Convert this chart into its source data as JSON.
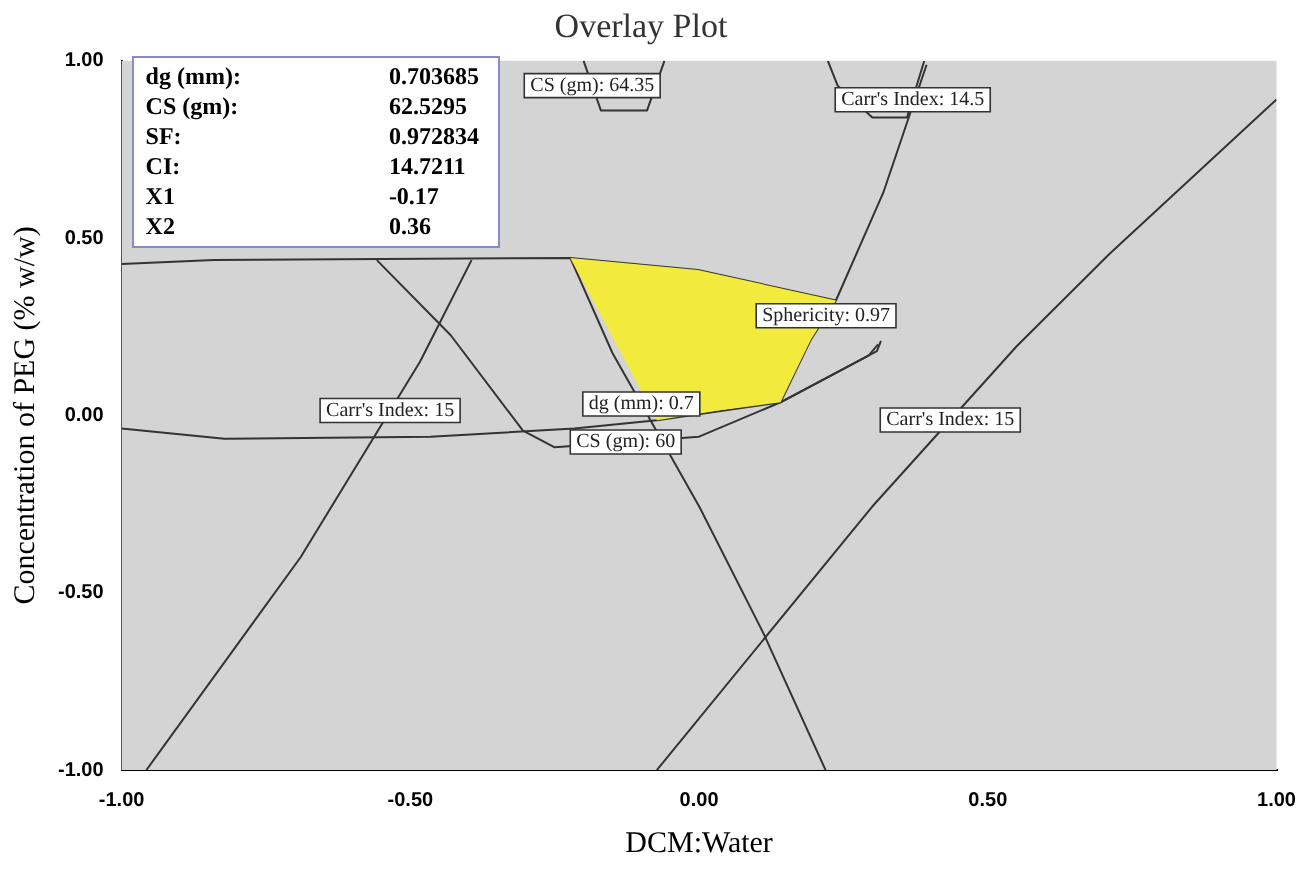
{
  "chart_data": {
    "type": "line",
    "title": "Overlay Plot",
    "xlabel": "DCM:Water",
    "ylabel": "Concentration of PEG (% w/w)",
    "xlim": [
      -1,
      1
    ],
    "ylim": [
      -1,
      1
    ],
    "xticks": [
      {
        "value": -1,
        "label": "-1.00"
      },
      {
        "value": -0.5,
        "label": "-0.50"
      },
      {
        "value": 0,
        "label": "0.00"
      },
      {
        "value": 0.5,
        "label": "0.50"
      },
      {
        "value": 1,
        "label": "1.00"
      }
    ],
    "yticks": [
      {
        "value": -1,
        "label": "-1.00"
      },
      {
        "value": -0.5,
        "label": "-0.50"
      },
      {
        "value": 0,
        "label": "0.00"
      },
      {
        "value": 0.5,
        "label": "0.50"
      },
      {
        "value": 1,
        "label": "1.00"
      }
    ],
    "grid": false,
    "legend": false,
    "marker": "none",
    "series": [
      {
        "type": "area",
        "color": "#f2ea3c",
        "x": [
          -0.223,
          -0.002,
          0.237,
          0.194,
          0.141,
          0.034,
          -0.073,
          -0.223
        ],
        "values": [
          0.444,
          0.41,
          0.324,
          0.215,
          0.037,
          0.014,
          -0.014,
          0.444
        ]
      },
      {
        "type": "line",
        "color": "#333333",
        "x": [
          -0.957,
          -0.69,
          -0.483,
          -0.394
        ],
        "values": [
          -1,
          -0.4,
          0.152,
          0.438
        ]
      },
      {
        "type": "line",
        "color": "#333333",
        "x": [
          -0.073,
          0.3,
          0.55,
          0.711,
          1.0
        ],
        "values": [
          -1,
          -0.257,
          0.195,
          0.456,
          0.891
        ]
      },
      {
        "type": "line",
        "color": "#333333",
        "x": [
          -0.223,
          -0.15,
          0.0,
          0.112,
          0.219
        ],
        "values": [
          0.444,
          0.176,
          -0.256,
          -0.616,
          -1
        ]
      },
      {
        "type": "line",
        "color": "#333333",
        "x": [
          -0.558,
          -0.43,
          -0.305,
          -0.25,
          0.0,
          0.141,
          0.294,
          0.31
        ],
        "values": [
          0.438,
          0.226,
          -0.043,
          -0.09,
          -0.06,
          0.037,
          0.169,
          0.2
        ]
      },
      {
        "type": "line",
        "color": "#333333",
        "x": [
          0.237,
          0.319,
          0.394
        ],
        "values": [
          0.324,
          0.628,
          0.989
        ]
      },
      {
        "type": "line",
        "color": "#333333",
        "x": [
          -1,
          -0.822,
          -0.465,
          -0.216,
          -0.073,
          0.141,
          0.308,
          0.315
        ],
        "values": [
          -0.037,
          -0.066,
          -0.06,
          -0.037,
          -0.014,
          0.037,
          0.181,
          0.21
        ]
      },
      {
        "type": "line",
        "color": "#333333",
        "x": [
          -1,
          -0.84,
          -0.223,
          -0.002,
          0.237,
          0.194,
          0.141
        ],
        "values": [
          0.427,
          0.438,
          0.444,
          0.41,
          0.324,
          0.215,
          0.037
        ]
      },
      {
        "type": "line",
        "color": "#333333",
        "x": [
          0.223,
          0.24,
          0.3,
          0.36,
          0.39
        ],
        "values": [
          1,
          0.93,
          0.84,
          0.84,
          1
        ]
      },
      {
        "type": "line",
        "color": "#333333",
        "x": [
          -0.2,
          -0.17,
          -0.09,
          -0.06
        ],
        "values": [
          1,
          0.86,
          0.86,
          1
        ]
      }
    ],
    "annotations": [
      {
        "text": "CS (gm): 64.35",
        "x": -0.185,
        "y": 0.93
      },
      {
        "text": "Carr's Index: 14.5",
        "x": 0.37,
        "y": 0.89
      },
      {
        "text": "Sphericity: 0.97",
        "x": 0.22,
        "y": 0.281
      },
      {
        "text": "Carr's Index: 15",
        "x": -0.535,
        "y": 0.014
      },
      {
        "text": "dg (mm): 0.7",
        "x": -0.1,
        "y": 0.032
      },
      {
        "text": "CS (gm): 60",
        "x": -0.127,
        "y": -0.075
      },
      {
        "text": "Carr's Index: 15",
        "x": 0.435,
        "y": -0.013
      },
      "dg (mm): 0.703685",
      "CS (gm): 62.5295",
      "SF: 0.972834",
      "CI: 14.7211",
      "X1 -0.17",
      "X2 0.36"
    ]
  }
}
